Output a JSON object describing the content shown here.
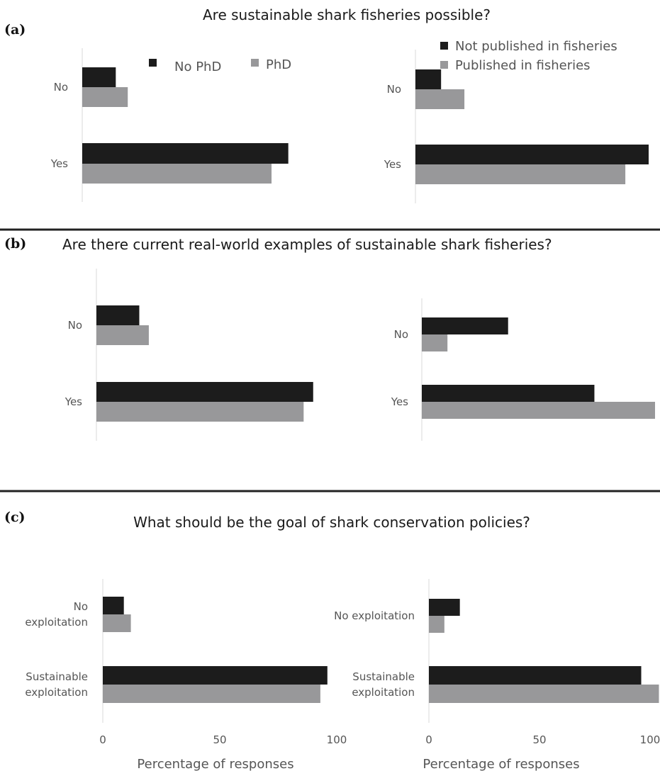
{
  "panels": [
    {
      "letter": "(a)",
      "title": "Are sustainable shark fisheries possible?"
    },
    {
      "letter": "(b)",
      "title": "Are there current real-world examples of sustainable shark fisheries?"
    },
    {
      "letter": "(c)",
      "title": "What should be the goal of shark conservation policies?"
    }
  ],
  "legends": {
    "phd": [
      {
        "name": "No PhD",
        "color": "#1c1c1c"
      },
      {
        "name": "PhD",
        "color": "#98989a"
      }
    ],
    "fisheries": [
      {
        "name": "Not published in fisheries",
        "color": "#1c1c1c"
      },
      {
        "name": "Published in fisheries",
        "color": "#98989a"
      }
    ]
  },
  "xaxis": {
    "title": "Percentage of responses",
    "ticks": [
      "0",
      "50",
      "100"
    ]
  },
  "chart_data": [
    {
      "type": "bar",
      "panel": "(a)",
      "group": "PhD",
      "categories": [
        "No",
        "Yes"
      ],
      "series": [
        {
          "name": "No PhD",
          "values": [
            14,
            86
          ]
        },
        {
          "name": "PhD",
          "values": [
            19,
            79
          ]
        }
      ],
      "xlim": [
        0,
        100
      ]
    },
    {
      "type": "bar",
      "panel": "(a)",
      "group": "Fisheries publication",
      "categories": [
        "No",
        "Yes"
      ],
      "series": [
        {
          "name": "Not published in fisheries",
          "values": [
            11,
            100
          ]
        },
        {
          "name": "Published in fisheries",
          "values": [
            21,
            90
          ]
        }
      ],
      "xlim": [
        0,
        100
      ]
    },
    {
      "type": "bar",
      "panel": "(b)",
      "group": "PhD",
      "categories": [
        "No",
        "Yes"
      ],
      "series": [
        {
          "name": "No PhD",
          "values": [
            18,
            91
          ]
        },
        {
          "name": "PhD",
          "values": [
            22,
            87
          ]
        }
      ],
      "xlim": [
        0,
        100
      ]
    },
    {
      "type": "bar",
      "panel": "(b)",
      "group": "Fisheries publication",
      "categories": [
        "No",
        "Yes"
      ],
      "series": [
        {
          "name": "Not published in fisheries",
          "values": [
            37,
            74
          ]
        },
        {
          "name": "Published in fisheries",
          "values": [
            11,
            100
          ]
        }
      ],
      "xlim": [
        0,
        100
      ]
    },
    {
      "type": "bar",
      "panel": "(c)",
      "group": "PhD",
      "categories": [
        "No exploitation",
        "Sustainable exploitation"
      ],
      "series": [
        {
          "name": "No PhD",
          "values": [
            9,
            96
          ]
        },
        {
          "name": "PhD",
          "values": [
            12,
            93
          ]
        }
      ],
      "xlim": [
        0,
        100
      ],
      "xlabel": "Percentage of responses"
    },
    {
      "type": "bar",
      "panel": "(c)",
      "group": "Fisheries publication",
      "categories": [
        "No exploitation",
        "Sustainable exploitation"
      ],
      "series": [
        {
          "name": "Not published in fisheries",
          "values": [
            14,
            96
          ]
        },
        {
          "name": "Published in fisheries",
          "values": [
            7,
            104
          ]
        }
      ],
      "xlim": [
        0,
        100
      ],
      "xlabel": "Percentage of responses"
    }
  ]
}
